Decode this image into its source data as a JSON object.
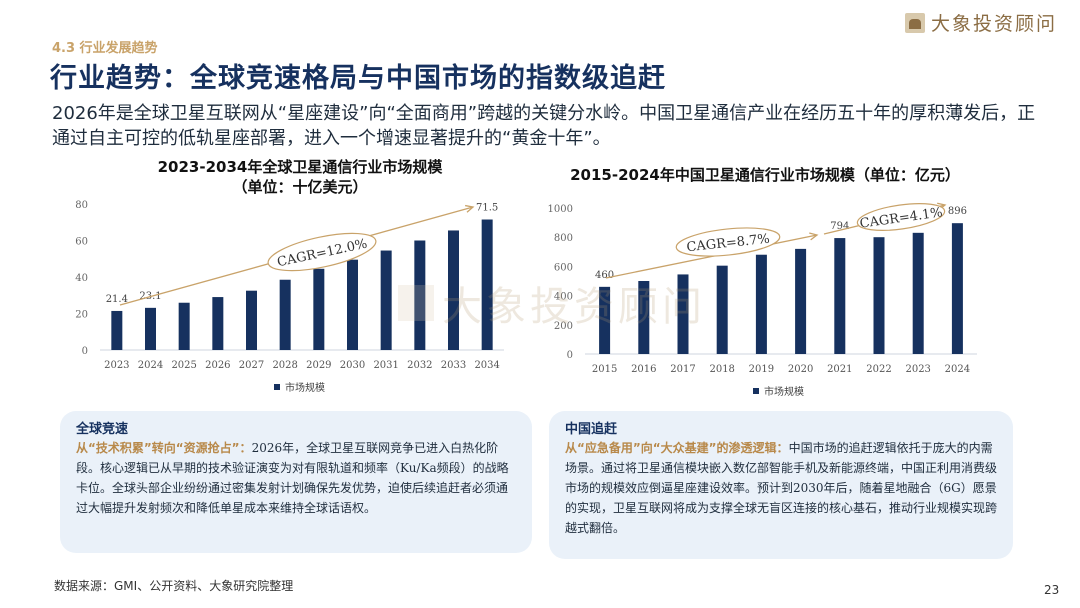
{
  "section": "4.3 行业发展趋势",
  "title": "行业趋势：全球竞速格局与中国市场的指数级追赶",
  "intro": "2026年是全球卫星互联网从“星座建设”向“全面商用”跨越的关键分水岭。中国卫星通信产业在经历五十年的厚积薄发后，正通过自主可控的低轨星座部署，进入一个增速显著提升的“黄金十年”。",
  "brand": "大象投资顾问",
  "chart_data": [
    {
      "type": "bar",
      "title": "2023-2034年全球卫星通信行业市场规模\n（单位：十亿美元）",
      "categories": [
        "2023",
        "2024",
        "2025",
        "2026",
        "2027",
        "2028",
        "2029",
        "2030",
        "2031",
        "2032",
        "2033",
        "2034"
      ],
      "series": [
        {
          "name": "市场规模",
          "values": [
            21.4,
            23.1,
            25.9,
            29.0,
            32.5,
            38.5,
            44.5,
            49.5,
            54.5,
            60.0,
            65.5,
            71.5
          ]
        }
      ],
      "value_labels": {
        "0": "21.4",
        "1": "23.1",
        "11": "71.5"
      },
      "ylim": [
        0,
        80
      ],
      "yticks": [
        0,
        20,
        40,
        60,
        80
      ],
      "annotation": "CAGR=12.0%",
      "legend": "bottom",
      "grid": false,
      "bar_color": "#16315f"
    },
    {
      "type": "bar",
      "title": "2015-2024年中国卫星通信行业市场规模（单位：亿元）",
      "categories": [
        "2015",
        "2016",
        "2017",
        "2018",
        "2019",
        "2020",
        "2021",
        "2022",
        "2023",
        "2024"
      ],
      "series": [
        {
          "name": "市场规模",
          "values": [
            460,
            500,
            545,
            605,
            680,
            720,
            794,
            800,
            830,
            896
          ]
        }
      ],
      "value_labels": {
        "0": "460",
        "6": "794",
        "9": "896"
      },
      "ylim": [
        0,
        1000
      ],
      "yticks": [
        0,
        200,
        400,
        600,
        800,
        1000
      ],
      "annotations": [
        "CAGR=8.7%",
        "CAGR=4.1%"
      ],
      "legend": "bottom",
      "grid": false,
      "bar_color": "#16315f"
    }
  ],
  "cards": [
    {
      "head": "全球竞速",
      "lead": "从“技术积累”转向“资源抢占”：",
      "body": "2026年，全球卫星互联网竞争已进入白热化阶段。核心逻辑已从早期的技术验证演变为对有限轨道和频率（Ku/Ka频段）的战略卡位。全球头部企业纷纷通过密集发射计划确保先发优势，迫使后续追赶者必须通过大幅提升发射频次和降低单星成本来维持全球话语权。"
    },
    {
      "head": "中国追赶",
      "lead": "从“应急备用”向“大众基建”的渗透逻辑：",
      "body": "中国市场的追赶逻辑依托于庞大的内需场景。通过将卫星通信模块嵌入数亿部智能手机及新能源终端，中国正利用消费级市场的规模效应倒逼星座建设效率。预计到2030年后，随着星地融合（6G）愿景的实现，卫星互联网将成为支撑全球无盲区连接的核心基石，推动行业规模实现跨越式翻倍。"
    }
  ],
  "source": "数据来源：GMI、公开资料、大象研究院整理",
  "page_number": "23"
}
